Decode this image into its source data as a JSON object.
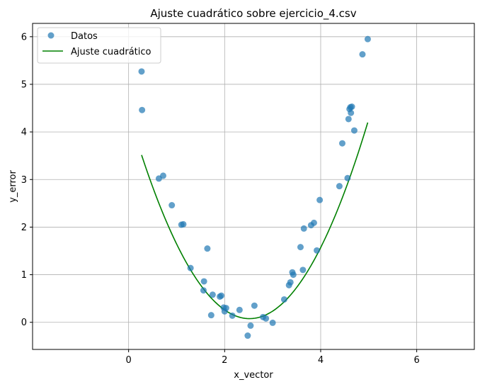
{
  "chart_data": {
    "type": "scatter",
    "title": "Ajuste cuadrático sobre ejercicio_4.csv",
    "xlabel": "x_vector",
    "ylabel": "y_error",
    "xlim": [
      -2.0,
      7.2
    ],
    "ylim": [
      -0.57,
      6.28
    ],
    "xticks": [
      0,
      2,
      4,
      6
    ],
    "yticks": [
      0,
      1,
      2,
      3,
      4,
      5,
      6
    ],
    "xtick_labels": [
      "0",
      "2",
      "4",
      "6"
    ],
    "ytick_labels": [
      "0",
      "1",
      "2",
      "3",
      "4",
      "5",
      "6"
    ],
    "grid": true,
    "legend_position": "top-left",
    "series": [
      {
        "name": "Datos",
        "kind": "scatter",
        "color": "#1f77b4",
        "x": [
          0.27,
          0.28,
          0.63,
          0.72,
          0.9,
          1.1,
          1.14,
          1.29,
          1.56,
          1.57,
          1.64,
          1.72,
          1.75,
          1.9,
          1.93,
          1.98,
          2.0,
          2.03,
          2.16,
          2.31,
          2.48,
          2.54,
          2.62,
          2.8,
          2.86,
          3.0,
          3.24,
          3.34,
          3.37,
          3.41,
          3.43,
          3.58,
          3.63,
          3.65,
          3.8,
          3.86,
          3.92,
          3.98,
          4.39,
          4.45,
          4.56,
          4.58,
          4.6,
          4.62,
          4.63,
          4.65,
          4.7,
          4.87,
          4.98
        ],
        "y": [
          5.27,
          4.46,
          3.02,
          3.08,
          2.46,
          2.05,
          2.06,
          1.14,
          0.67,
          0.86,
          1.55,
          0.15,
          0.58,
          0.54,
          0.56,
          0.31,
          0.23,
          0.3,
          0.14,
          0.26,
          -0.28,
          -0.07,
          0.35,
          0.11,
          0.08,
          -0.01,
          0.48,
          0.78,
          0.84,
          1.05,
          1.0,
          1.58,
          1.1,
          1.97,
          2.04,
          2.09,
          1.51,
          2.57,
          2.86,
          3.76,
          3.03,
          4.27,
          4.48,
          4.52,
          4.4,
          4.53,
          4.03,
          5.63,
          5.95
        ]
      },
      {
        "name": "Ajuste cuadrático",
        "kind": "line",
        "color": "#008000",
        "coefficients": [
          0.68,
          -3.425,
          4.39
        ],
        "x_range": [
          0.27,
          4.98
        ]
      }
    ]
  }
}
